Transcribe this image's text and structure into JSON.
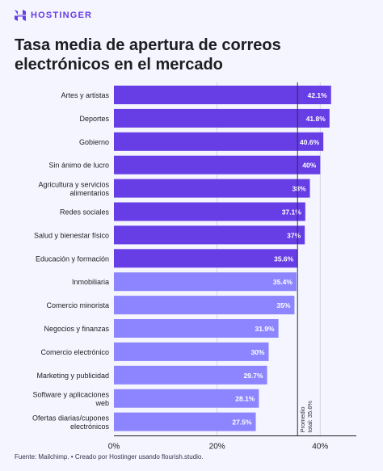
{
  "brand": {
    "name": "HOSTINGER",
    "color": "#673de6"
  },
  "colors": {
    "bar_dark": "#673de6",
    "bar_light": "#8c85ff",
    "background": "#f4f5ff"
  },
  "chart_data": {
    "type": "bar",
    "orientation": "horizontal",
    "title": "Tasa media de apertura de correos electrónicos en el mercado",
    "categories": [
      "Artes y artistas",
      "Deportes",
      "Gobierno",
      "Sin ánimo de lucro",
      "Agricultura y servicios alimentarios",
      "Redes sociales",
      "Salud y bienestar físico",
      "Educación y formación",
      "Inmobiliaria",
      "Comercio minorista",
      "Negocios y finanzas",
      "Comercio electrónico",
      "Marketing y publicidad",
      "Software y aplicaciones web",
      "Ofertas diarias/cupones electrónicos"
    ],
    "values": [
      42.1,
      41.8,
      40.6,
      40,
      38,
      37.1,
      37,
      35.6,
      35.4,
      35,
      31.9,
      30,
      29.7,
      28.1,
      27.5
    ],
    "value_labels": [
      "42.1%",
      "41.8%",
      "40.6%",
      "40%",
      "38%",
      "37.1%",
      "37%",
      "35.6%",
      "35.4%",
      "35%",
      "31.9%",
      "30%",
      "29.7%",
      "28.1%",
      "27.5%"
    ],
    "above_average_count": 8,
    "xlim": [
      0,
      47
    ],
    "xticks": [
      0,
      20,
      40
    ],
    "xtick_labels": [
      "0%",
      "20%",
      "40%"
    ],
    "reference_line": {
      "value": 35.6,
      "label": "Promedio total: 35.6%"
    },
    "grid": true
  },
  "footer": {
    "source": "Fuente: Mailchimp. • Creado por Hostinger usando flourish.studio."
  }
}
